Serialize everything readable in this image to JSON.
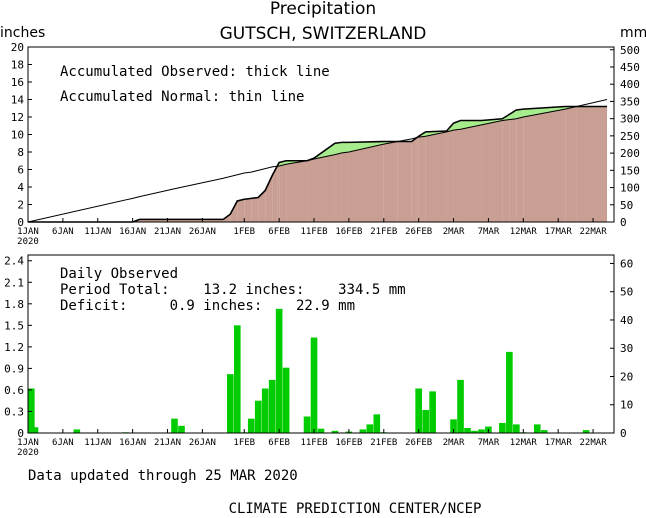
{
  "header": {
    "title": "Precipitation",
    "subtitle": "GUTSCH, SWITZERLAND",
    "left_unit": "inches",
    "right_unit": "mm"
  },
  "top_notes": {
    "line1": "Accumulated Observed: thick line",
    "line2": "Accumulated Normal: thin line"
  },
  "bottom_notes": {
    "line1": "Daily Observed",
    "line2": "Period Total:    13.2 inches:    334.5 mm",
    "line3": "Deficit:     0.9 inches:    22.9 mm"
  },
  "footer": {
    "updated": "Data updated through 25 MAR 2020",
    "credit": "CLIMATE PREDICTION CENTER/NCEP"
  },
  "x_ticks": [
    "1JAN",
    "6JAN",
    "11JAN",
    "16JAN",
    "21JAN",
    "26JAN",
    "1FEB",
    "6FEB",
    "11FEB",
    "16FEB",
    "21FEB",
    "26FEB",
    "2MAR",
    "7MAR",
    "12MAR",
    "17MAR",
    "22MAR"
  ],
  "x_tick_days": [
    1,
    6,
    11,
    16,
    21,
    26,
    32,
    37,
    42,
    47,
    52,
    57,
    62,
    67,
    72,
    77,
    82
  ],
  "x_year_label": "2020",
  "colors": {
    "observed_fill": "#c89f92",
    "surplus_fill": "#a6eb8c",
    "bar": "#00cc00",
    "line": "#000000"
  },
  "chart_data": [
    {
      "type": "area",
      "ylabel_left": "inches",
      "ylabel_right": "mm",
      "ylim": [
        0,
        20
      ],
      "yticks_left": [
        "0",
        "2",
        "4",
        "6",
        "8",
        "10",
        "12",
        "14",
        "16",
        "18",
        "20"
      ],
      "yticks_right": [
        "0",
        "50",
        "100",
        "150",
        "200",
        "250",
        "300",
        "350",
        "400",
        "450",
        "500"
      ],
      "x_days": [
        1,
        16,
        17,
        22,
        29,
        30,
        31,
        32,
        33,
        34,
        35,
        36,
        37,
        38,
        41,
        42,
        45,
        46,
        47,
        52,
        56,
        57,
        58,
        61,
        62,
        63,
        66,
        69,
        70,
        71,
        72,
        78,
        84
      ],
      "observed": [
        0,
        0,
        0.3,
        0.3,
        0.3,
        0.9,
        2.4,
        2.6,
        2.7,
        2.8,
        3.6,
        5.3,
        6.8,
        7.0,
        7.0,
        7.3,
        9.0,
        9.1,
        9.1,
        9.2,
        9.2,
        9.8,
        10.3,
        10.4,
        11.3,
        11.6,
        11.6,
        11.8,
        12.3,
        12.8,
        12.9,
        13.2,
        13.2
      ],
      "normal": [
        0,
        2.7,
        2.9,
        3.8,
        5.0,
        5.2,
        5.4,
        5.6,
        5.7,
        5.9,
        6.1,
        6.3,
        6.4,
        6.6,
        7.0,
        7.2,
        7.7,
        7.9,
        8.0,
        8.9,
        9.5,
        9.7,
        9.8,
        10.3,
        10.5,
        10.6,
        11.1,
        11.6,
        11.7,
        11.8,
        12.0,
        12.9,
        14.0
      ]
    },
    {
      "type": "bar",
      "ylabel_left": "inches",
      "ylabel_right": "mm",
      "ylim": [
        0,
        2.48
      ],
      "yticks_left": [
        "0",
        "0.3",
        "0.6",
        "0.9",
        "1.2",
        "1.5",
        "1.8",
        "2.1",
        "2.4"
      ],
      "yticks_right": [
        "0",
        "10",
        "20",
        "30",
        "40",
        "50",
        "60"
      ],
      "ytick_left_values": [
        0,
        0.3,
        0.6,
        0.9,
        1.2,
        1.5,
        1.8,
        2.1,
        2.4
      ],
      "ytick_right_mm": [
        0,
        10,
        20,
        30,
        40,
        50,
        60
      ],
      "days": [
        1,
        2,
        8,
        15,
        22,
        23,
        30,
        31,
        32,
        33,
        34,
        35,
        36,
        37,
        38,
        41,
        42,
        43,
        45,
        47,
        49,
        50,
        51,
        52,
        57,
        58,
        59,
        62,
        63,
        64,
        65,
        66,
        67,
        69,
        70,
        71,
        72,
        74,
        75,
        81
      ],
      "values": [
        0.62,
        0.08,
        0.05,
        0.01,
        0.2,
        0.1,
        0.82,
        1.5,
        0.01,
        0.2,
        0.45,
        0.62,
        0.74,
        1.73,
        0.91,
        0.23,
        1.33,
        0.06,
        0.03,
        0.02,
        0.05,
        0.12,
        0.26,
        0.01,
        0.62,
        0.32,
        0.58,
        0.19,
        0.74,
        0.07,
        0.03,
        0.05,
        0.09,
        0.14,
        1.13,
        0.12,
        0.01,
        0.12,
        0.04,
        0.04
      ]
    }
  ]
}
